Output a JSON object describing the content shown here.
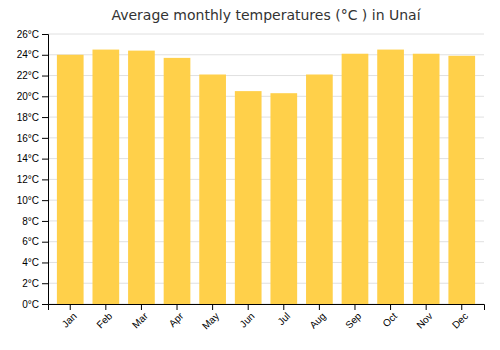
{
  "chart_data": {
    "type": "bar",
    "title": "Average monthly temperatures (°C ) in Unaí",
    "categories": [
      "Jan",
      "Feb",
      "Mar",
      "Apr",
      "May",
      "Jun",
      "Jul",
      "Aug",
      "Sep",
      "Oct",
      "Nov",
      "Dec"
    ],
    "values": [
      24.0,
      24.5,
      24.4,
      23.7,
      22.1,
      20.5,
      20.3,
      22.1,
      24.1,
      24.5,
      24.1,
      23.9
    ],
    "color": "#FFD04A",
    "ylim": [
      0,
      26
    ],
    "yticks": [
      {
        "value": 0,
        "label": "0°C"
      },
      {
        "value": 2,
        "label": "2°C"
      },
      {
        "value": 4,
        "label": "4°C"
      },
      {
        "value": 6,
        "label": "6°C"
      },
      {
        "value": 8,
        "label": "8°C"
      },
      {
        "value": 10,
        "label": "10°C"
      },
      {
        "value": 12,
        "label": "12°C"
      },
      {
        "value": 14,
        "label": "14°C"
      },
      {
        "value": 16,
        "label": "16°C"
      },
      {
        "value": 18,
        "label": "18°C"
      },
      {
        "value": 20,
        "label": "20°C"
      },
      {
        "value": 22,
        "label": "22°C"
      },
      {
        "value": 24,
        "label": "24°C"
      },
      {
        "value": 26,
        "label": "26°C"
      }
    ],
    "grid": true
  }
}
